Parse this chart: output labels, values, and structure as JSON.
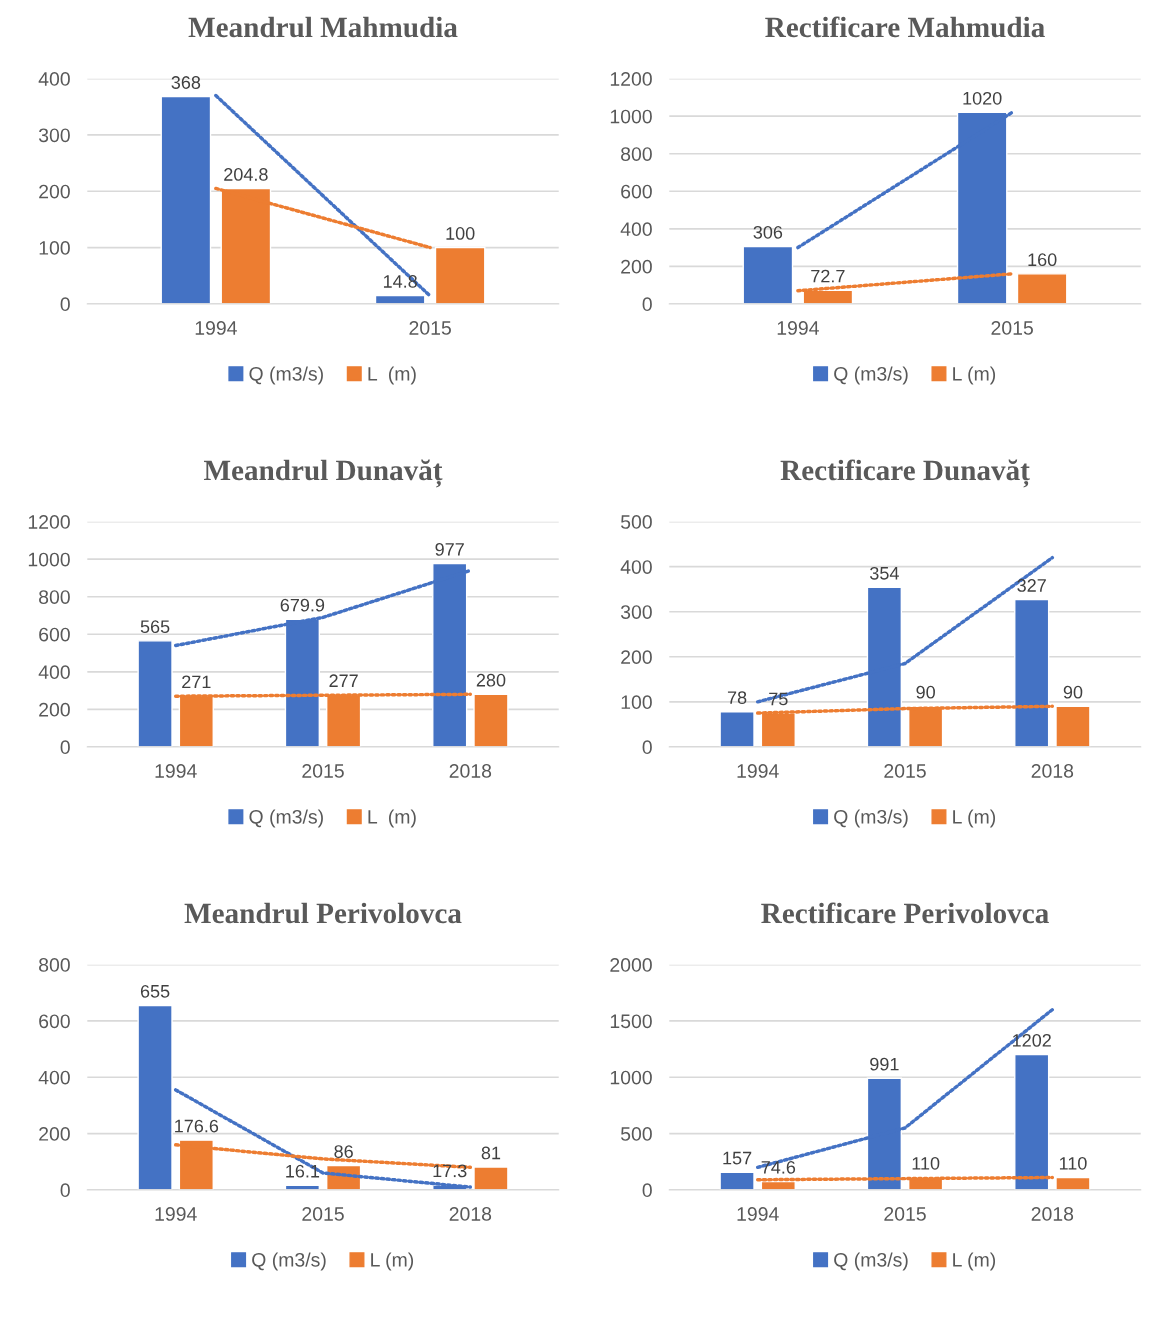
{
  "chart_data": [
    {
      "type": "bar",
      "title": "Meandrul Mahmudia",
      "categories": [
        "1994",
        "2015"
      ],
      "ylim": [
        0,
        400
      ],
      "yticks": [
        0,
        100,
        200,
        300,
        400
      ],
      "grid": "y",
      "legend": "bottom",
      "series": [
        {
          "name": "Q (m3/s)",
          "color": "#4472c4",
          "values": [
            368,
            14.8
          ],
          "value_labels": [
            "368",
            "14.8"
          ]
        },
        {
          "name": "L  (m)",
          "color": "#ed7d31",
          "values": [
            204.8,
            100
          ],
          "value_labels": [
            "204.8",
            "100"
          ]
        },
        {
          "type": "line",
          "color": "#4472c4",
          "line_style": "dotted",
          "values": [
            370,
            14
          ]
        },
        {
          "type": "line",
          "color": "#ed7d31",
          "line_style": "dotted",
          "values": [
            205,
            100
          ]
        }
      ]
    },
    {
      "type": "bar",
      "title": "Rectificare Mahmudia",
      "categories": [
        "1994",
        "2015"
      ],
      "ylim": [
        0,
        1200
      ],
      "yticks": [
        0,
        200,
        400,
        600,
        800,
        1000,
        1200
      ],
      "grid": "y",
      "legend": "bottom",
      "series": [
        {
          "name": "Q (m3/s)",
          "color": "#4472c4",
          "values": [
            306,
            1020
          ],
          "value_labels": [
            "306",
            "1020"
          ]
        },
        {
          "name": "L (m)",
          "color": "#ed7d31",
          "values": [
            72.7,
            160
          ],
          "value_labels": [
            "72.7",
            "160"
          ]
        },
        {
          "type": "line",
          "color": "#4472c4",
          "line_style": "dotted",
          "values": [
            300,
            1020
          ]
        },
        {
          "type": "line",
          "color": "#ed7d31",
          "line_style": "dotted",
          "values": [
            70,
            160
          ]
        }
      ]
    },
    {
      "type": "bar",
      "title": "Meandrul Dunavăț",
      "categories": [
        "1994",
        "2015",
        "2018"
      ],
      "ylim": [
        0,
        1200
      ],
      "yticks": [
        0,
        200,
        400,
        600,
        800,
        1000,
        1200
      ],
      "grid": "y",
      "legend": "bottom",
      "series": [
        {
          "name": "Q (m3/s)",
          "color": "#4472c4",
          "values": [
            565,
            679.9,
            977
          ],
          "value_labels": [
            "565",
            "679.9",
            "977"
          ]
        },
        {
          "name": "L  (m)",
          "color": "#ed7d31",
          "values": [
            271,
            277,
            280
          ],
          "value_labels": [
            "271",
            "277",
            "280"
          ]
        },
        {
          "type": "line",
          "color": "#4472c4",
          "line_style": "dotted",
          "values": [
            540,
            690,
            940
          ]
        },
        {
          "type": "line",
          "color": "#ed7d31",
          "line_style": "dotted",
          "values": [
            270,
            275,
            280
          ]
        }
      ]
    },
    {
      "type": "bar",
      "title": "Rectificare Dunavăț",
      "categories": [
        "1994",
        "2015",
        "2018"
      ],
      "ylim": [
        0,
        500
      ],
      "yticks": [
        0,
        100,
        200,
        300,
        400,
        500
      ],
      "grid": "y",
      "legend": "bottom",
      "series": [
        {
          "name": "Q (m3/s)",
          "color": "#4472c4",
          "values": [
            78,
            354,
            327
          ],
          "value_labels": [
            "78",
            "354",
            "327"
          ]
        },
        {
          "name": "L (m)",
          "color": "#ed7d31",
          "values": [
            75,
            90,
            90
          ],
          "value_labels": [
            "75",
            "90",
            "90"
          ]
        },
        {
          "type": "line",
          "color": "#4472c4",
          "line_style": "dotted",
          "values": [
            100,
            185,
            420
          ]
        },
        {
          "type": "line",
          "color": "#ed7d31",
          "line_style": "dotted",
          "values": [
            75,
            85,
            90
          ]
        }
      ]
    },
    {
      "type": "bar",
      "title": "Meandrul Perivolovca",
      "categories": [
        "1994",
        "2015",
        "2018"
      ],
      "ylim": [
        0,
        800
      ],
      "yticks": [
        0,
        200,
        400,
        600,
        800
      ],
      "grid": "y",
      "legend": "bottom",
      "series": [
        {
          "name": "Q (m3/s)",
          "color": "#4472c4",
          "values": [
            655,
            16.1,
            17.3
          ],
          "value_labels": [
            "655",
            "16.1",
            "17.3"
          ]
        },
        {
          "name": "L (m)",
          "color": "#ed7d31",
          "values": [
            176.6,
            86,
            81
          ],
          "value_labels": [
            "176.6",
            "86",
            "81"
          ]
        },
        {
          "type": "line",
          "color": "#4472c4",
          "line_style": "dotted",
          "values": [
            355,
            60,
            10
          ]
        },
        {
          "type": "line",
          "color": "#ed7d31",
          "line_style": "dotted",
          "values": [
            160,
            110,
            80
          ]
        }
      ]
    },
    {
      "type": "bar",
      "title": "Rectificare Perivolovca",
      "categories": [
        "1994",
        "2015",
        "2018"
      ],
      "ylim": [
        0,
        2000
      ],
      "yticks": [
        0,
        500,
        1000,
        1500,
        2000
      ],
      "grid": "y",
      "legend": "bottom",
      "series": [
        {
          "name": "Q (m3/s)",
          "color": "#4472c4",
          "values": [
            157,
            991,
            1202
          ],
          "value_labels": [
            "157",
            "991",
            "1202"
          ]
        },
        {
          "name": "L (m)",
          "color": "#ed7d31",
          "values": [
            74.6,
            110,
            110
          ],
          "value_labels": [
            "74.6",
            "110",
            "110"
          ]
        },
        {
          "type": "line",
          "color": "#4472c4",
          "line_style": "dotted",
          "values": [
            200,
            550,
            1600
          ]
        },
        {
          "type": "line",
          "color": "#ed7d31",
          "line_style": "dotted",
          "values": [
            90,
            100,
            110
          ]
        }
      ]
    }
  ]
}
